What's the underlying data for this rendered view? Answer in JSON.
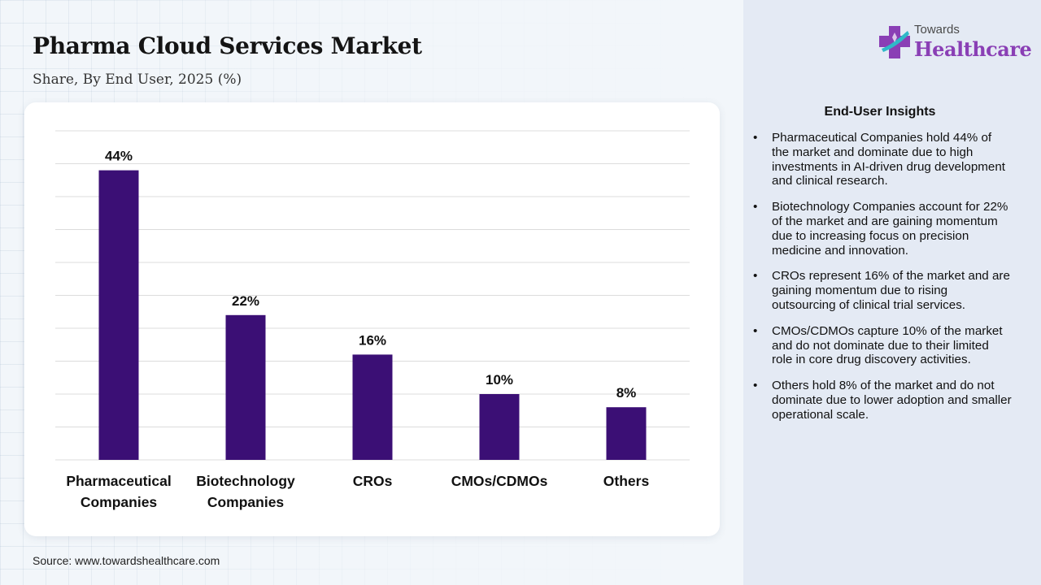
{
  "title": "Pharma Cloud Services Market",
  "subtitle": "Share, By End User, 2025 (%)",
  "source": "Source: www.towardshealthcare.com",
  "logo": {
    "top": "Towards",
    "bottom": "Healthcare"
  },
  "colors": {
    "bar": "#3b0f75",
    "grid": "#dcdcdc",
    "logo_accent": "#8a3fb5"
  },
  "insights": {
    "title": "End-User Insights",
    "items": [
      "Pharmaceutical Companies hold 44% of the market and dominate due to high investments in AI-driven drug development and clinical research.",
      "Biotechnology Companies account for 22% of the market and are gaining momentum due to increasing focus on precision medicine and innovation.",
      "CROs represent 16% of the market and are gaining momentum due to rising outsourcing of clinical trial services.",
      "CMOs/CDMOs capture 10% of the market and do not dominate due to their limited role in core drug discovery activities.",
      "Others hold 8% of the market and do not dominate due to lower adoption and smaller operational scale."
    ]
  },
  "chart_data": {
    "type": "bar",
    "categories": [
      "Pharmaceutical Companies",
      "Biotechnology Companies",
      "CROs",
      "CMOs/CDMOs",
      "Others"
    ],
    "values": [
      44,
      22,
      16,
      10,
      8
    ],
    "value_labels": [
      "44%",
      "22%",
      "16%",
      "10%",
      "8%"
    ],
    "title": "",
    "xlabel": "",
    "ylabel": "",
    "ylim": [
      0,
      50
    ],
    "grid": true,
    "legend": "none"
  }
}
